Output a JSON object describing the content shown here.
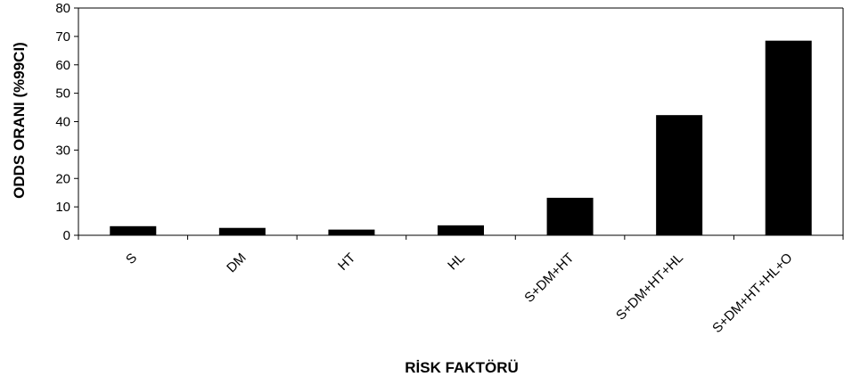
{
  "chart_data": {
    "type": "bar",
    "title": "",
    "xlabel": "RİSK FAKTÖRÜ",
    "ylabel": "ODDS ORANI (%99CI)",
    "categories": [
      "S",
      "DM",
      "HT",
      "HL",
      "S+DM+HT",
      "S+DM+HT+HL",
      "S+DM+HT+HL+O"
    ],
    "values": [
      3.2,
      2.6,
      2.0,
      3.5,
      13.2,
      42.3,
      68.5
    ],
    "ylim": [
      0,
      80
    ],
    "yticks": [
      0,
      10,
      20,
      30,
      40,
      50,
      60,
      70,
      80
    ],
    "ytick_labels": [
      "0",
      "10",
      "20",
      "30",
      "40",
      "50",
      "60",
      "70",
      "80"
    ],
    "grid": false,
    "legend": "none",
    "bar_color": "#000000"
  }
}
